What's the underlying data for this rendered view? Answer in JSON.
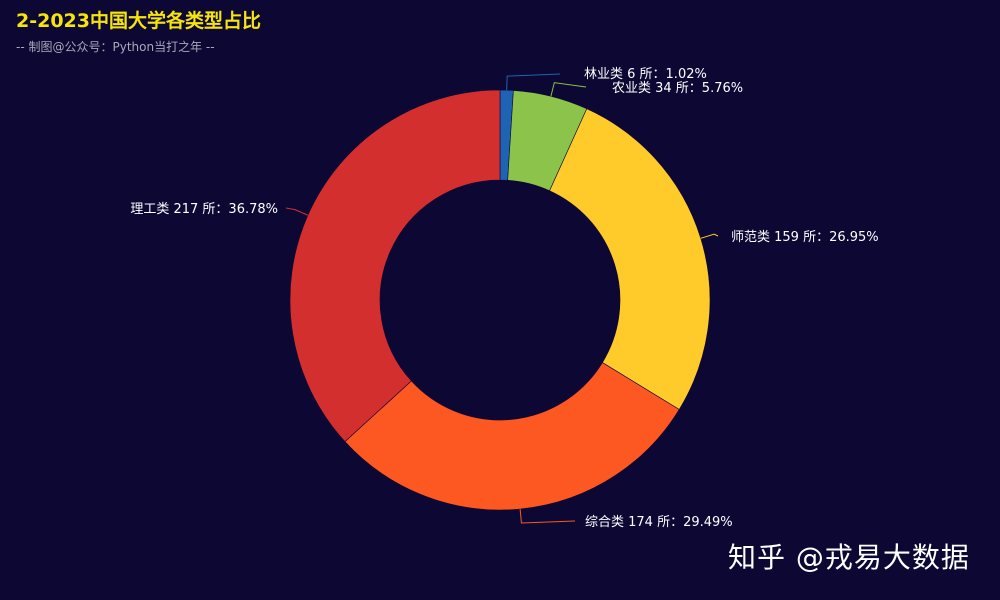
{
  "title": "2-2023中国大学各类型占比",
  "subtitle": "-- 制图@公众号：Python当打之年 --",
  "watermark": "知乎 @戎易大数据",
  "colors": {
    "background": "#0d0733",
    "title": "#f5e50b"
  },
  "chart_data": {
    "type": "pie",
    "donut": true,
    "slices": [
      {
        "name": "林业类",
        "value": 6,
        "percent": 1.02,
        "label": "林业类 6 所：1.02%",
        "color": "#1f64b4"
      },
      {
        "name": "农业类",
        "value": 34,
        "percent": 5.76,
        "label": "农业类 34 所：5.76%",
        "color": "#8cc34a"
      },
      {
        "name": "师范类",
        "value": 159,
        "percent": 26.95,
        "label": "师范类 159 所：26.95%",
        "color": "#fecb2a"
      },
      {
        "name": "综合类",
        "value": 174,
        "percent": 29.49,
        "label": "综合类 174 所：29.49%",
        "color": "#fd5722"
      },
      {
        "name": "理工类",
        "value": 217,
        "percent": 36.78,
        "label": "理工类 217 所：36.78%",
        "color": "#d32f2f"
      }
    ]
  }
}
